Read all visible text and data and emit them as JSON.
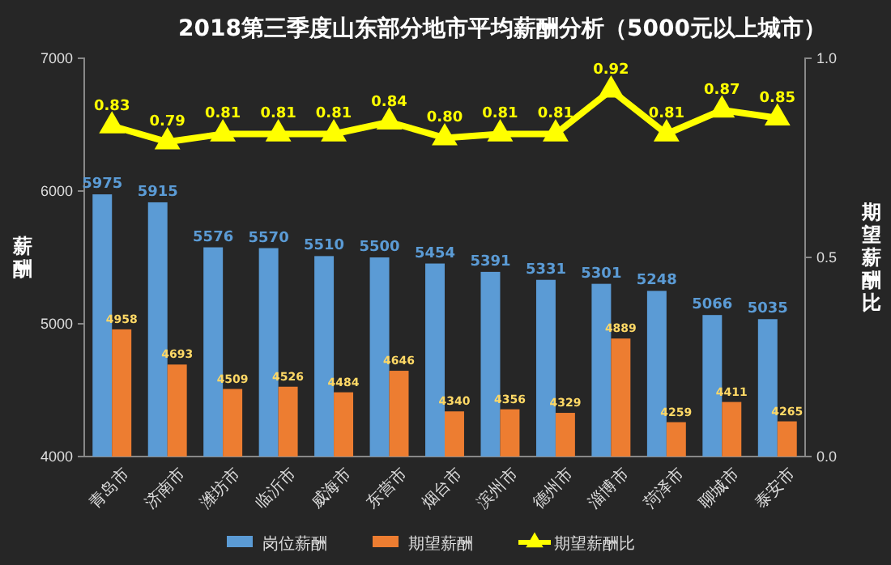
{
  "chart_data": {
    "type": "bar",
    "title": "2018第三季度山东部分地市平均薪酬分析（5000元以上城市）",
    "ylabel": "薪酬",
    "y2label": "期望薪酬比",
    "categories": [
      "青岛市",
      "济南市",
      "潍坊市",
      "临沂市",
      "威海市",
      "东营市",
      "烟台市",
      "滨州市",
      "德州市",
      "淄博市",
      "菏泽市",
      "聊城市",
      "泰安市"
    ],
    "series": [
      {
        "name": "岗位薪酬",
        "color": "#5b9bd5",
        "values": [
          5975,
          5915,
          5576,
          5570,
          5510,
          5500,
          5454,
          5391,
          5331,
          5301,
          5248,
          5066,
          5035
        ]
      },
      {
        "name": "期望薪酬",
        "color": "#ed7d31",
        "values": [
          4958,
          4693,
          4509,
          4526,
          4484,
          4646,
          4340,
          4356,
          4329,
          4889,
          4259,
          4411,
          4265
        ]
      },
      {
        "name": "期望薪酬比",
        "color": "#ffff00",
        "type": "line",
        "axis": "y2",
        "marker": "triangle",
        "values": [
          0.83,
          0.79,
          0.81,
          0.81,
          0.81,
          0.84,
          0.8,
          0.81,
          0.81,
          0.92,
          0.81,
          0.87,
          0.85
        ],
        "value_labels": [
          "0.83",
          "0.79",
          "0.81",
          "0.81",
          "0.81",
          "0.84",
          "0.80",
          "0.81",
          "0.81",
          "0.92",
          "0.81",
          "0.87",
          "0.85"
        ]
      }
    ],
    "ylim": [
      4000,
      7000
    ],
    "yticks": [
      4000,
      5000,
      6000,
      7000
    ],
    "y2lim": [
      0,
      1
    ],
    "y2ticks": [
      {
        "value": 0,
        "label": "0.0"
      },
      {
        "value": 0.5,
        "label": "0.5"
      },
      {
        "value": 1,
        "label": "1.0"
      }
    ],
    "data_labels": true,
    "legend": "bottom",
    "grid": false
  }
}
